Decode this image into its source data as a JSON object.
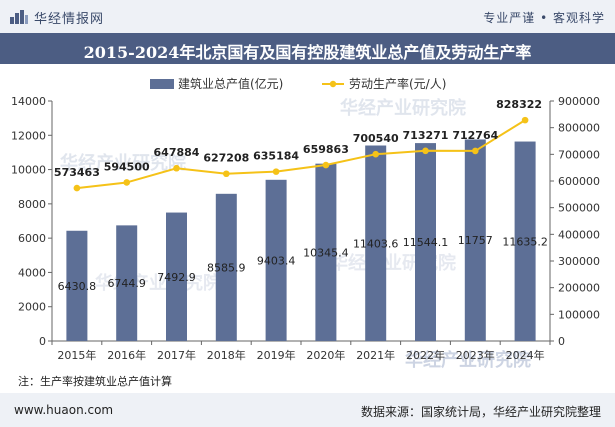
{
  "header": {
    "brand": "华经情报网",
    "slogan": "专业严谨 • 客观科学"
  },
  "footer": {
    "site": "www.huaon.com",
    "source": "数据来源：国家统计局，华经产业研究院整理"
  },
  "note": "注：生产率按建筑业总产值计算",
  "watermark": {
    "cn": "华经产业研究院",
    "url": "www.huaon.com"
  },
  "colors": {
    "bar": "#5d6f96",
    "line": "#f5c218",
    "title_bg": "#4c5d83",
    "band_bg": "#eef1f6"
  },
  "chart_data": {
    "type": "bar+line",
    "title": "2015-2024年北京国有及国有控股建筑业总产值及劳动生产率",
    "categories": [
      "2015年",
      "2016年",
      "2017年",
      "2018年",
      "2019年",
      "2020年",
      "2021年",
      "2022年",
      "2023年",
      "2024年"
    ],
    "series": [
      {
        "name": "建筑业总产值(亿元)",
        "type": "bar",
        "axis": "left",
        "values": [
          6430.8,
          6744.9,
          7492.9,
          8585.9,
          9403.4,
          10345.4,
          11403.6,
          11544.1,
          11757,
          11635.2
        ],
        "labels": [
          "6430.8",
          "6744.9",
          "7492.9",
          "8585.9",
          "9403.4",
          "10345.4",
          "11403.6",
          "11544.1",
          "11757",
          "11635.2"
        ]
      },
      {
        "name": "劳动生产率(元/人)",
        "type": "line",
        "axis": "right",
        "values": [
          573463,
          594500,
          647884,
          627208,
          635184,
          659863,
          700540,
          713271,
          712764,
          828322
        ],
        "labels": [
          "573463",
          "594500",
          "647884",
          "627208",
          "635184",
          "659863",
          "700540",
          "713271",
          "712764",
          "828322"
        ]
      }
    ],
    "y_left": {
      "min": 0,
      "max": 14000,
      "ticks": [
        "0",
        "2000",
        "4000",
        "6000",
        "8000",
        "10000",
        "12000",
        "14000"
      ]
    },
    "y_right": {
      "min": 0,
      "max": 900000,
      "ticks": [
        "0",
        "100000",
        "200000",
        "300000",
        "400000",
        "500000",
        "600000",
        "700000",
        "800000",
        "900000"
      ]
    },
    "legend_position": "top-center",
    "grid": false
  }
}
